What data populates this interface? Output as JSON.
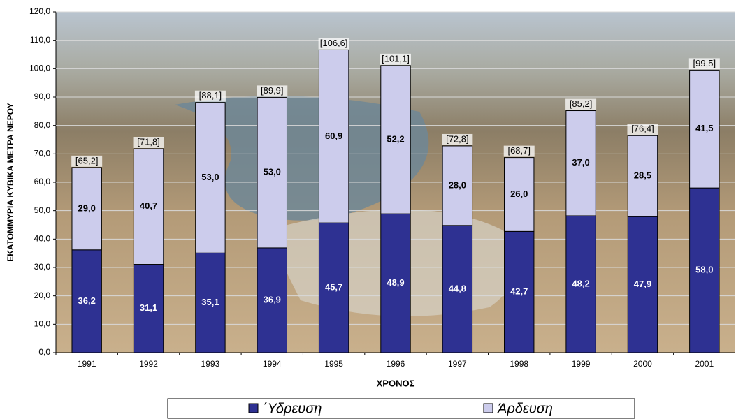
{
  "chart_data": {
    "type": "stacked-bar",
    "y_label": "ΕΚΑΤΟΜΜΥΡΙΑ ΚΥΒΙΚΑ ΜΕΤΡΑ ΝΕΡΟΥ",
    "x_label": "ΧΡΟΝΟΣ",
    "categories": [
      "1991",
      "1992",
      "1993",
      "1994",
      "1995",
      "1996",
      "1997",
      "1998",
      "1999",
      "2000",
      "2001"
    ],
    "series": [
      {
        "name": "΄Υδρευση",
        "color": "#2e3192",
        "values": [
          36.2,
          31.1,
          35.1,
          36.9,
          45.7,
          48.9,
          44.8,
          42.7,
          48.2,
          47.9,
          58.0
        ],
        "value_labels": [
          "36,2",
          "31,1",
          "35,1",
          "36,9",
          "45,7",
          "48,9",
          "44,8",
          "42,7",
          "48,2",
          "47,9",
          "58,0"
        ]
      },
      {
        "name": "Άρδευση",
        "color": "#ccccec",
        "values": [
          29.0,
          40.7,
          53.0,
          53.0,
          60.9,
          52.2,
          28.0,
          26.0,
          37.0,
          28.5,
          41.5
        ],
        "value_labels": [
          "29,0",
          "40,7",
          "53,0",
          "53,0",
          "60,9",
          "52,2",
          "28,0",
          "26,0",
          "37,0",
          "28,5",
          "41,5"
        ]
      }
    ],
    "totals": [
      65.2,
      71.8,
      88.1,
      89.9,
      106.6,
      101.1,
      72.8,
      68.7,
      85.2,
      76.4,
      99.5
    ],
    "totals_labels": [
      "[65,2]",
      "[71,8]",
      "[88,1]",
      "[89,9]",
      "[106,6]",
      "[101,1]",
      "[72,8]",
      "[68,7]",
      "[85,2]",
      "[76,4]",
      "[99,5]"
    ],
    "ylim": [
      0,
      120
    ],
    "yticks": [
      {
        "value": 0,
        "label": "0,0"
      },
      {
        "value": 10,
        "label": "10,0"
      },
      {
        "value": 20,
        "label": "20,0"
      },
      {
        "value": 30,
        "label": "30,0"
      },
      {
        "value": 40,
        "label": "40,0"
      },
      {
        "value": 50,
        "label": "50,0"
      },
      {
        "value": 60,
        "label": "60,0"
      },
      {
        "value": 70,
        "label": "70,0"
      },
      {
        "value": 80,
        "label": "80,0"
      },
      {
        "value": 90,
        "label": "90,0"
      },
      {
        "value": 100,
        "label": "100,0"
      },
      {
        "value": 110,
        "label": "110,0"
      },
      {
        "value": 120,
        "label": "120,0"
      }
    ],
    "grid": true
  }
}
